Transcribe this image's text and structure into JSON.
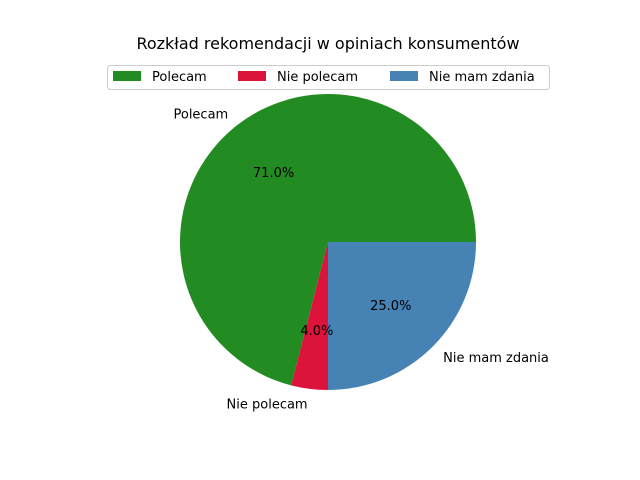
{
  "chart_data": {
    "type": "pie",
    "title": "Rozkład rekomendacji w opiniach konsumentów",
    "categories": [
      "Polecam",
      "Nie polecam",
      "Nie mam zdania"
    ],
    "values": [
      71.0,
      4.0,
      25.0
    ],
    "percent_labels": [
      "71.0%",
      "4.0%",
      "25.0%"
    ],
    "colors": [
      "#228b22",
      "#dc143c",
      "#4682b4"
    ],
    "start_angle_deg": 0,
    "direction": "counterclockwise",
    "legend_placement": "top-center"
  }
}
